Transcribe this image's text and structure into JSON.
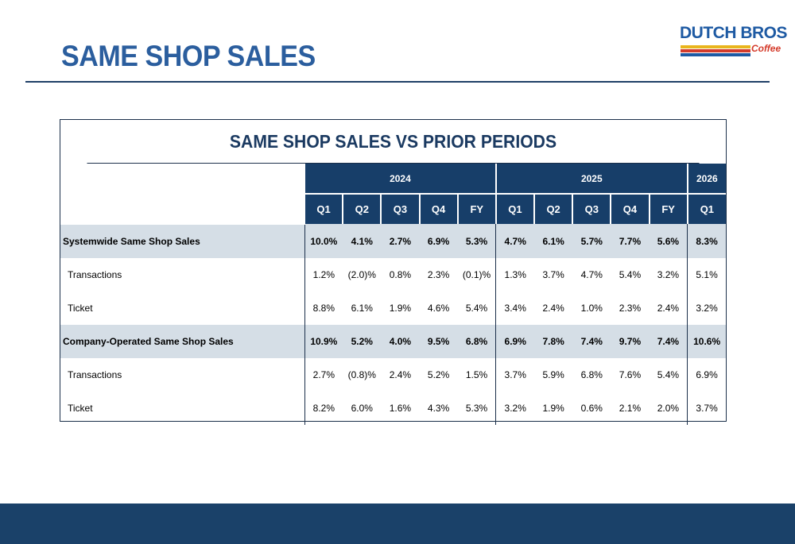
{
  "header": {
    "title": "SAME SHOP SALES",
    "logo": {
      "name": "DUTCH BROS",
      "tagline": "Coffee"
    }
  },
  "table": {
    "title": "SAME SHOP SALES VS PRIOR PERIODS",
    "years": [
      "2024",
      "2025",
      "2026"
    ],
    "periods": [
      "Q1",
      "Q2",
      "Q3",
      "Q4",
      "FY",
      "Q1",
      "Q2",
      "Q3",
      "Q4",
      "FY",
      "Q1"
    ],
    "rows": [
      {
        "label": "Systemwide Same Shop Sales",
        "values": [
          "10.0%",
          "4.1%",
          "2.7%",
          "6.9%",
          "5.3%",
          "4.7%",
          "6.1%",
          "5.7%",
          "7.7%",
          "5.6%",
          "8.3%"
        ]
      },
      {
        "label": "Transactions",
        "values": [
          "1.2%",
          "(2.0)%",
          "0.8%",
          "2.3%",
          "(0.1)%",
          "1.3%",
          "3.7%",
          "4.7%",
          "5.4%",
          "3.2%",
          "5.1%"
        ]
      },
      {
        "label": "Ticket",
        "values": [
          "8.8%",
          "6.1%",
          "1.9%",
          "4.6%",
          "5.4%",
          "3.4%",
          "2.4%",
          "1.0%",
          "2.3%",
          "2.4%",
          "3.2%"
        ]
      },
      {
        "label": "Company-Operated Same Shop Sales",
        "values": [
          "10.9%",
          "5.2%",
          "4.0%",
          "9.5%",
          "6.8%",
          "6.9%",
          "7.8%",
          "7.4%",
          "9.7%",
          "7.4%",
          "10.6%"
        ]
      },
      {
        "label": "Transactions",
        "values": [
          "2.7%",
          "(0.8)%",
          "2.4%",
          "5.2%",
          "1.5%",
          "3.7%",
          "5.9%",
          "6.8%",
          "7.6%",
          "5.4%",
          "6.9%"
        ]
      },
      {
        "label": "Ticket",
        "values": [
          "8.2%",
          "6.0%",
          "1.6%",
          "4.3%",
          "5.3%",
          "3.2%",
          "1.9%",
          "0.6%",
          "2.1%",
          "2.0%",
          "3.7%"
        ]
      }
    ]
  }
}
